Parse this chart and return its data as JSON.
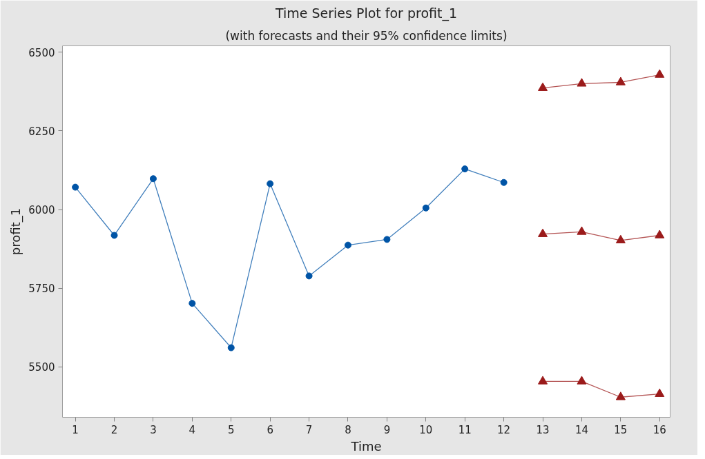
{
  "chart_data": {
    "type": "line",
    "title": "Time Series Plot for profit_1",
    "subtitle": "(with forecasts and their 95% confidence limits)",
    "xlabel": "Time",
    "ylabel": "profit_1",
    "xlim": [
      0.67,
      16.27
    ],
    "xticks": [
      1,
      2,
      3,
      4,
      5,
      6,
      7,
      8,
      9,
      10,
      11,
      12,
      13,
      14,
      15,
      16
    ],
    "ylim": [
      5340,
      6520
    ],
    "yticks": [
      5500,
      5750,
      6000,
      6250,
      6500
    ],
    "grid": false,
    "line_style": "solid",
    "series": [
      {
        "color": "#0054a6",
        "marker": "circle",
        "x": [
          1,
          2,
          3,
          4,
          5,
          6,
          7,
          8,
          9,
          10,
          11,
          12
        ],
        "values": [
          6071,
          5918,
          6098,
          5702,
          5561,
          6082,
          5789,
          5887,
          5905,
          6005,
          6129,
          6086
        ]
      },
      {
        "color": "#9b1b1b",
        "marker": "triangle",
        "x": [
          13,
          14,
          15,
          16
        ],
        "values": [
          6386,
          6400,
          6404,
          6428
        ]
      },
      {
        "color": "#9b1b1b",
        "marker": "triangle",
        "x": [
          13,
          14,
          15,
          16
        ],
        "values": [
          5922,
          5929,
          5902,
          5918
        ]
      },
      {
        "color": "#9b1b1b",
        "marker": "triangle",
        "x": [
          13,
          14,
          15,
          16
        ],
        "values": [
          5454,
          5454,
          5404,
          5414
        ]
      }
    ]
  }
}
